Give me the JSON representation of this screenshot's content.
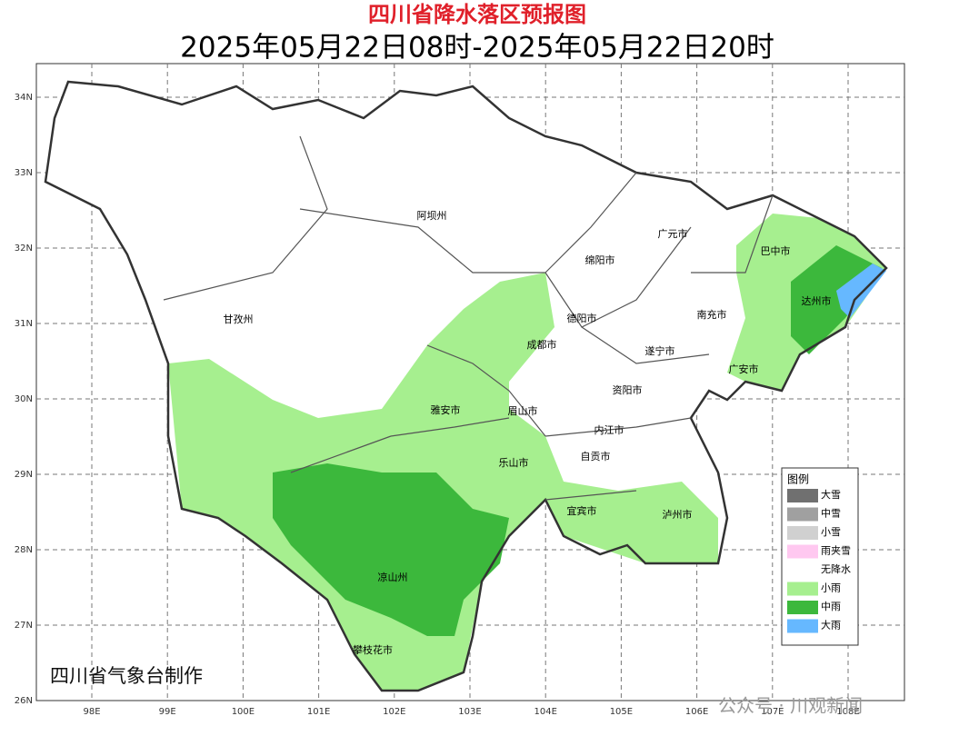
{
  "title": "四川省降水落区预报图",
  "subtitle": "2025年05月22日08时-2025年05月22日20时",
  "map": {
    "lat_labels": [
      "34N",
      "33N",
      "32N",
      "31N",
      "30N",
      "29N",
      "28N",
      "27N",
      "26N"
    ],
    "lon_labels": [
      "98E",
      "99E",
      "100E",
      "101E",
      "102E",
      "103E",
      "104E",
      "105E",
      "106E",
      "107E",
      "108E"
    ],
    "places": [
      "阿坝州",
      "甘孜州",
      "广元市",
      "巴中市",
      "绵阳市",
      "达州市",
      "德阳市",
      "南充市",
      "成都市",
      "遂宁市",
      "广安市",
      "资阳市",
      "雅安市",
      "眉山市",
      "内江市",
      "乐山市",
      "自贡市",
      "宜宾市",
      "泸州市",
      "凉山州",
      "攀枝花市"
    ]
  },
  "legend": {
    "title": "图例",
    "items": [
      {
        "label": "大雪",
        "color": "#707070"
      },
      {
        "label": "中雪",
        "color": "#a0a0a0"
      },
      {
        "label": "小雪",
        "color": "#d0d0d0"
      },
      {
        "label": "雨夹雪",
        "color": "#ffc8f0"
      },
      {
        "label": "无降水",
        "color": "#ffffff"
      },
      {
        "label": "小雨",
        "color": "#a6ef8f"
      },
      {
        "label": "中雨",
        "color": "#3cb83c"
      },
      {
        "label": "大雨",
        "color": "#66b8ff"
      }
    ]
  },
  "credit": "四川省气象台制作",
  "watermark": "公众号 · 川观新闻"
}
